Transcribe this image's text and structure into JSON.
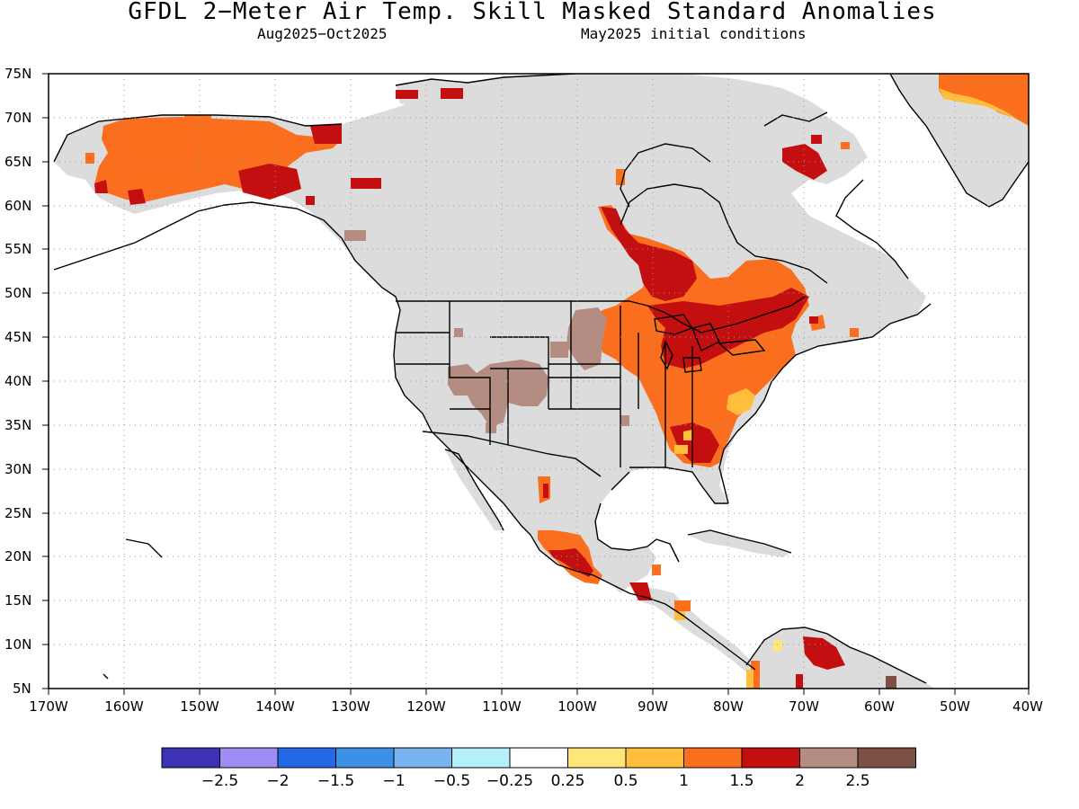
{
  "title": "GFDL 2−Meter Air Temp. Skill Masked Standard Anomalies",
  "subtitle_left": "Aug2025−Oct2025",
  "subtitle_right": "May2025 initial conditions",
  "lat_labels": [
    "75N",
    "70N",
    "65N",
    "60N",
    "55N",
    "50N",
    "45N",
    "40N",
    "35N",
    "30N",
    "25N",
    "20N",
    "15N",
    "10N",
    "5N"
  ],
  "lon_labels": [
    "170W",
    "160W",
    "150W",
    "140W",
    "130W",
    "120W",
    "110W",
    "100W",
    "90W",
    "80W",
    "70W",
    "60W",
    "50W",
    "40W"
  ],
  "legend": {
    "colors": [
      "#3e32b4",
      "#a08cf5",
      "#2368e6",
      "#3c91e6",
      "#78b4f0",
      "#b4f0fa",
      "#ffffff",
      "#ffe678",
      "#ffbe3c",
      "#fa6e1e",
      "#c30f0f",
      "#b48c82",
      "#7d5046"
    ],
    "labels": [
      "−2.5",
      "−2",
      "−1.5",
      "−1",
      "−0.5",
      "−0.25",
      "0.25",
      "0.5",
      "1",
      "1.5",
      "2",
      "2.5"
    ]
  },
  "colors": {
    "land_mask": "#dcdcdc",
    "coast": "#000000",
    "anom_1_15": "#fa6e1e",
    "anom_15_2": "#c30f0f",
    "anom_2_25": "#b48c82",
    "anom_05_1": "#ffbe3c",
    "anom_025_05": "#ffe678",
    "anom_gt25": "#7d5046"
  }
}
